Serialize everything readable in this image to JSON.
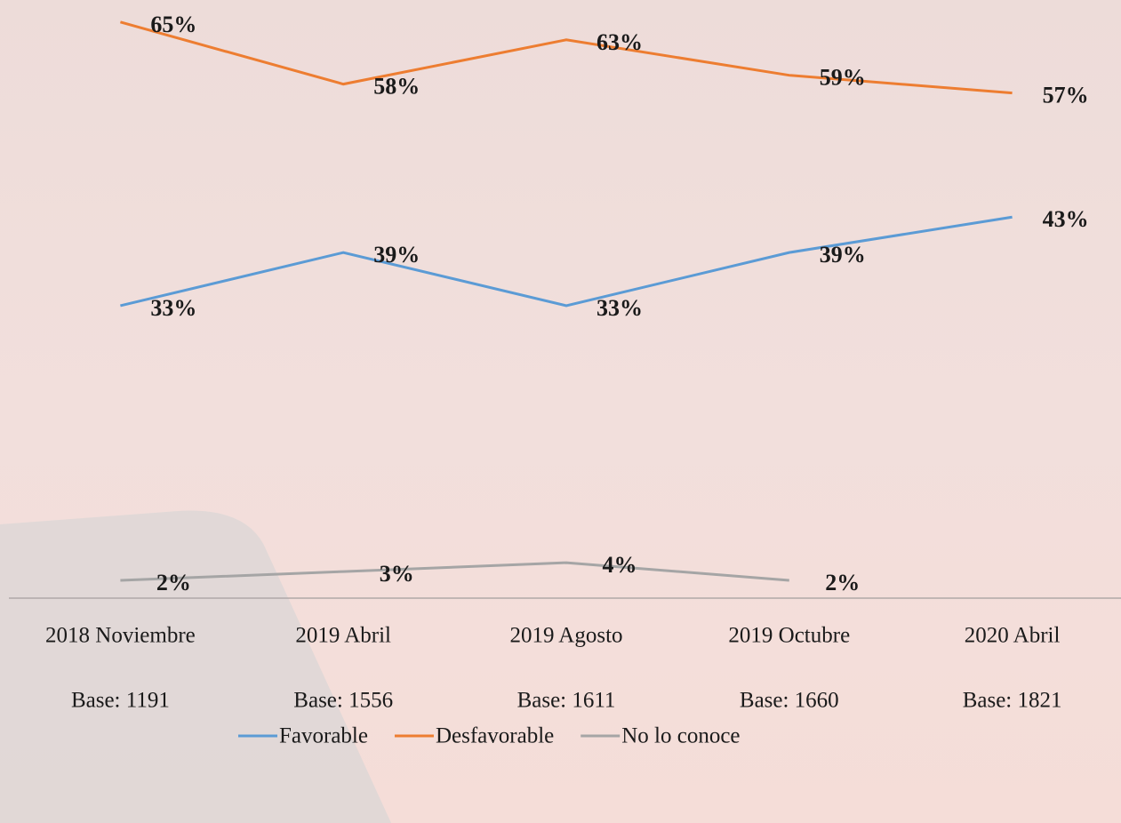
{
  "chart_data": {
    "type": "line",
    "categories": [
      "2018 Noviembre",
      "2019 Abril",
      "2019 Agosto",
      "2019 Octubre",
      "2020 Abril"
    ],
    "bases": [
      "Base: 1191",
      "Base: 1556",
      "Base: 1611",
      "Base: 1660",
      "Base: 1821"
    ],
    "ylim": [
      0,
      70
    ],
    "series": [
      {
        "name": "Favorable",
        "color": "#5b9bd5",
        "values": [
          33,
          39,
          33,
          39,
          43
        ],
        "value_labels": [
          "33%",
          "39%",
          "33%",
          "39%",
          "43%"
        ]
      },
      {
        "name": "Desfavorable",
        "color": "#ed7d31",
        "values": [
          65,
          58,
          63,
          59,
          57
        ],
        "value_labels": [
          "65%",
          "58%",
          "63%",
          "59%",
          "57%"
        ]
      },
      {
        "name": "No lo conoce",
        "color": "#a5a5a5",
        "values": [
          2,
          3,
          4,
          2,
          null
        ],
        "value_labels": [
          "2%",
          "3%",
          "4%",
          "2%",
          null
        ]
      }
    ],
    "legend": "bottom"
  }
}
